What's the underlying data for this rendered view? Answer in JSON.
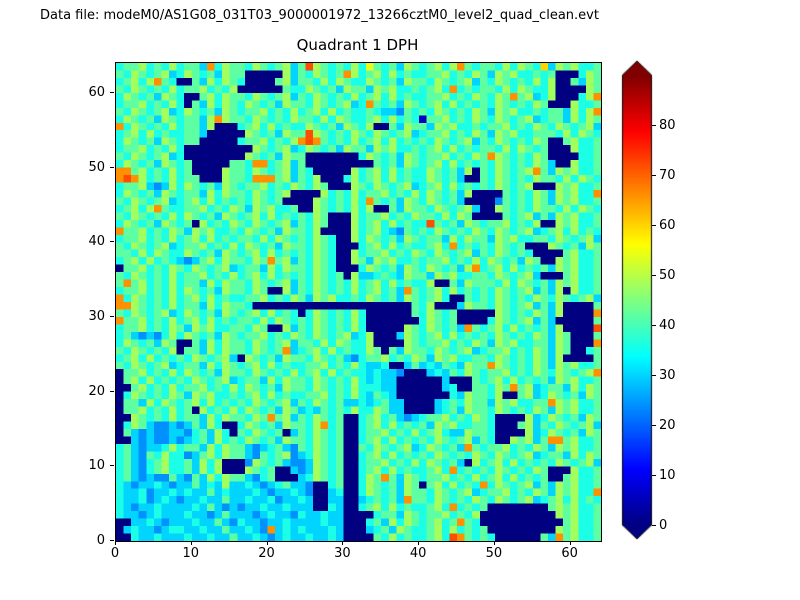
{
  "header": {
    "datafile_label": "Data file: modeM0/AS1G08_031T03_9000001972_13266cztM0_level2_quad_clean.evt"
  },
  "chart_data": {
    "type": "heatmap",
    "title": "Quadrant 1 DPH",
    "xlabel": "",
    "ylabel": "",
    "grid_size": 64,
    "x_range": [
      0,
      64
    ],
    "y_range": [
      0,
      64
    ],
    "x_ticks": [
      0,
      10,
      20,
      30,
      40,
      50,
      60
    ],
    "y_ticks": [
      0,
      10,
      20,
      30,
      40,
      50,
      60
    ],
    "colormap": "jet",
    "value_scale": {
      "vmin": 0,
      "vmax": 90,
      "step": 6,
      "cell_encoding": "one hex digit per detector pixel; value = digit * 6 counts"
    },
    "colorbar": {
      "position": "right",
      "ticks": [
        0,
        10,
        20,
        30,
        40,
        50,
        60,
        70,
        80
      ],
      "extend": "both",
      "under_color": "#000080",
      "over_color": "#800000"
    },
    "rows_top_to_bottom": [
      "67786768677 5B68776876785 7C87676869767587 67868B7677686876A5878667",
      "7687678568767587700000857687 67B86786867667786768758786676 7000687",
      "67868B76007586876000078577686876687675877687678576876768680 07587",
      "7687676867786768000000766876758775878667678 6B6767768687668000087",
      "687675876007868776876785768767686786867667786768768 7B7856800068B",
      "6778676860758687687675877687678 56B76758767868676768767687000866 7",
      "76876785687675876778676867868676676554767687676875878 6676775868B",
      "6876758767758B87768767687768687667868676177867687687678567758687",
      "B6876768677580006786867668767587680075877587866767786768768 76785",
      "6786867667750000087675877C876768768767856778676875878 66777686876",
      "687675876770000067786768BCB767686786867676876785768767687 0078667",
      "67786768600000000087678568767587758786676786867677686876700 08667",
      "768767856000000008767587700000006876758767786768 7B87676870000667",
      "6876758767000007 76BB67857000000000767587678686767687676875008667",
      "BB78676867000087768767857600000867868676687675807687678B75878 667",
      "BCB8676867700087 76BBB7857680006867868676687675007687676877686876",
      "677854586876758767786768768700087687678567868676768767800 0878667",
      "6876758767758687768767800008676867786768687675800007676 87587866B",
      "768767856786867676876700008767686B76758768767500004767687587 8667",
      "67868B766778676875878667008767686800758776876785008767687768 6876",
      "7687676868767587678686767687000867786768776868700007678575878 667",
      "68767587670867687687678576870008678686766C76758767786768008 78667",
      "B7786768758786676876758776800008678654767687676876876785678686 76",
      "6778676867868676776868767687600868767587677586877587866776876 785",
      "76876785677867686876758776876000678686766786B676768767000876 7587",
      "7768687668767587678686767687600867786768768767857687676000078 667",
      "67868676545786877687B7857687600875878667677867686876758700878 667",
      "077867687687678567758687768760006876758768 76758B6786867675878667",
      "768767686778676867868676768767085567658775878667768767850007 8667",
      "7B78676867758687768767857687676867868676680075877768687675878 667",
      "6778676868767587768700857687676867 8675B767868676768767857580 8667",
      "B687676867868676677867687587866768767587678600767687676876876 785",
      "BB87676867758687760000000000000000000007680005877687678575800 007",
      "7687678568767587678686760687676860000007687670000087676 87580000B",
      "B77867686786867677686876768767686000000068767000068767857500 0007",
      "67786768758786677687008576876768600000876876 75B7678686767580000C",
      "675454686876758767786768768767856800058767868676768767687587 0007",
      "68767587007586877687678577686876680000876778676875878 6677587000B",
      "76876768077586877687 67B5678686766870758776876785677867687587 0067",
      "678686767687678508767587768767546778676875878 667768767687580 0007",
      "7687678567758687678686766778676865560057565765877B8767687587 8667",
      "077867686876758776876768678686766565540005657687677867687687 678B",
      "078686767687678567758687768767686565500000050007678686767587 8667",
      "00786768677867686876758776876768666550000005 60077687B78567758687",
      "068767687587866767868676677867686576500000006587768007856876 7587",
      "077586876786867676876785768767556567550000567687758786 677B878667",
      "0778676867086768687675875657676866875500005675877687676875878 667",
      "008767686775868 77687B78576876700678675456778676876000085687675 87",
      "0687544545758600687675 87768B670067868676758786677600078576876785",
      "07545445546758607687670576876700677867686786558776000085687675 87",
      "005454454567586768767587768767006786867676876785760087857BB78 667",
      "675455686775868775456754768767007687678568 7675B76778676875878667",
      "675476866457868775476784568767006786867676876768768767856775 8687",
      "675467866758680004876754458767006778676868767508678686767687 6785",
      "67546786675868000876700545876700678686766786B676768767687000 8667",
      "6754544754758687754670005687670068 7B75876778676867868676700 78667",
      "65455654557565855654567554006700687675870786867 6B687678575878667",
      "655645565655756555654556540056006876758776876785677867687587 866B",
      "65564565455655755655645565005500567675B77687676876876785678686 76",
      "6545565555657545455655655500650067868676 6786B6767000000007878667",
      "655456555655457555456554655655000067758767786768000000000087 8667",
      "005565455565575465545565555655000675868767867B760000000000078 667",
      "0565545665565575 5654B565655565000567587667868676700000000 0878667",
      "00655655565565575565456556556500007686766786CB767600000075B78 667"
    ]
  }
}
